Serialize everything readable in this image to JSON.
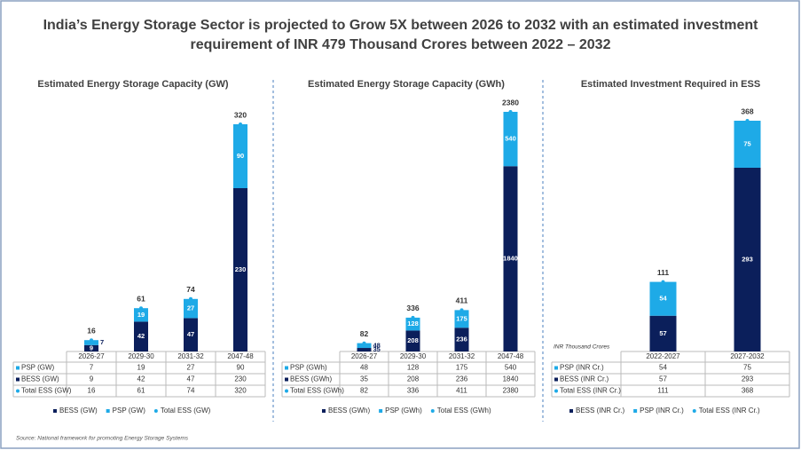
{
  "title": "India’s Energy Storage Sector is projected to Grow 5X between 2026 to 2032 with an estimated investment requirement of INR 479 Thousand Crores between 2022 – 2032",
  "source": "Source: National framework for promoting Energy Storage Systems",
  "chart_data": [
    {
      "type": "bar",
      "stacked": true,
      "title": "Estimated Energy Storage Capacity (GW)",
      "categories": [
        "2026-27",
        "2029-30",
        "2031-32",
        "2047-48"
      ],
      "series": [
        {
          "name": "BESS (GW)",
          "color": "#0b1f5b",
          "values": [
            9,
            42,
            47,
            230
          ]
        },
        {
          "name": "PSP (GW)",
          "color": "#1eaae7",
          "values": [
            7,
            19,
            27,
            90
          ]
        }
      ],
      "totals": {
        "name": "Total ESS (GW)",
        "color": "#1eaae7",
        "values": [
          16,
          61,
          74,
          320
        ]
      }
    },
    {
      "type": "bar",
      "stacked": true,
      "title": "Estimated Energy Storage Capacity (GWh)",
      "categories": [
        "2026-27",
        "2029-30",
        "2031-32",
        "2047-48"
      ],
      "series": [
        {
          "name": "BESS (GWh)",
          "color": "#0b1f5b",
          "values": [
            35,
            208,
            236,
            1840
          ]
        },
        {
          "name": "PSP (GWh)",
          "color": "#1eaae7",
          "values": [
            48,
            128,
            175,
            540
          ]
        }
      ],
      "totals": {
        "name": "Total ESS (GWh)",
        "color": "#1eaae7",
        "values": [
          82,
          336,
          411,
          2380
        ]
      }
    },
    {
      "type": "bar",
      "stacked": true,
      "title": "Estimated Investment Required in ESS",
      "note": "INR Thousand Crores",
      "categories": [
        "2022-2027",
        "2027-2032"
      ],
      "series": [
        {
          "name": "BESS (INR Cr.)",
          "color": "#0b1f5b",
          "values": [
            57,
            293
          ]
        },
        {
          "name": "PSP (INR Cr.)",
          "color": "#1eaae7",
          "values": [
            54,
            75
          ]
        }
      ],
      "totals": {
        "name": "Total ESS (INR Cr.)",
        "color": "#1eaae7",
        "values": [
          111,
          368
        ]
      }
    }
  ]
}
